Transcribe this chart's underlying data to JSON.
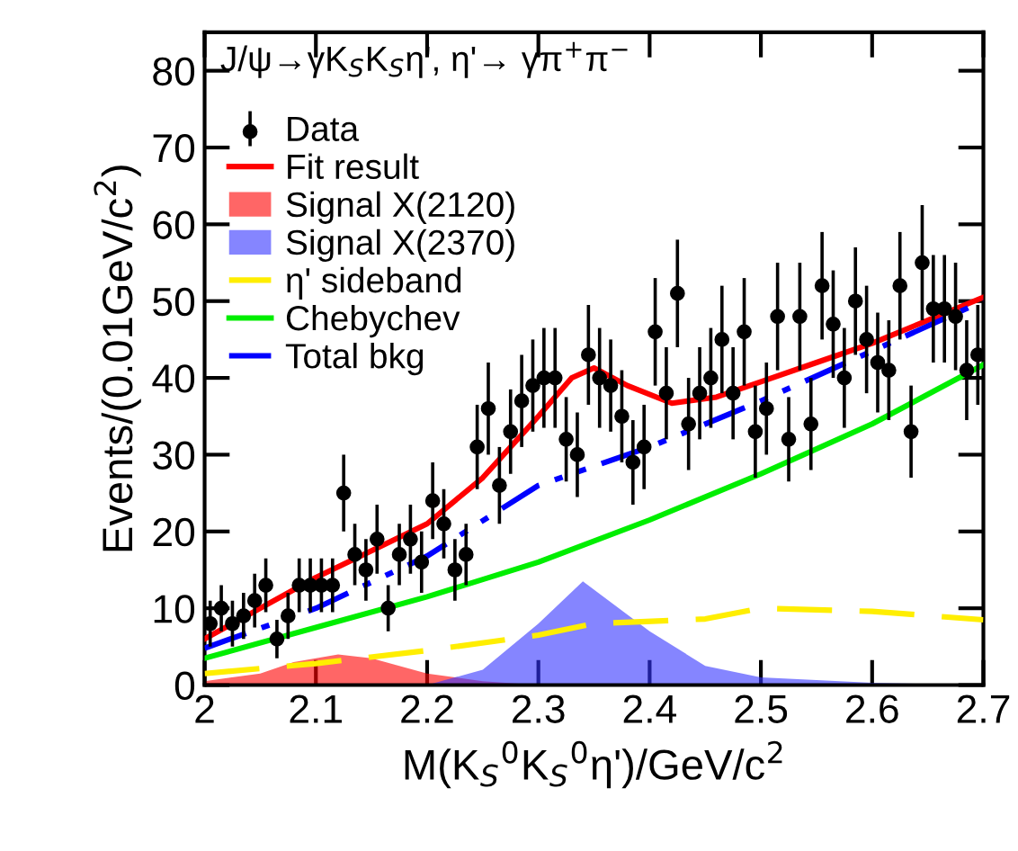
{
  "chart_data": {
    "type": "line",
    "xlabel": "M(K$_{S}$$^{0}$K$_{S}$$^{0}$η')/GeV/c$^{2}$",
    "ylabel": "Events/(0.01GeV/c$^{2}$)",
    "annotations": [
      "J/ψ→γK$_{S}$K$_{S}$η', η'→ γπ$^{+}$π$^{−}$"
    ],
    "xlim": [
      2,
      2.7
    ],
    "ylim": [
      0,
      85
    ],
    "xticks": [
      2,
      2.1,
      2.2,
      2.3,
      2.4,
      2.5,
      2.6,
      2.7
    ],
    "yticks": [
      0,
      10,
      20,
      30,
      40,
      50,
      60,
      70,
      80
    ],
    "grid": false,
    "legend": "top left",
    "series": [
      {
        "name": "Data",
        "type": "scatter",
        "marker": "circle",
        "color": "#000000",
        "x": [
          2.005,
          2.015,
          2.025,
          2.035,
          2.045,
          2.055,
          2.065,
          2.075,
          2.085,
          2.095,
          2.105,
          2.115,
          2.125,
          2.135,
          2.145,
          2.155,
          2.165,
          2.175,
          2.185,
          2.195,
          2.205,
          2.215,
          2.225,
          2.235,
          2.245,
          2.255,
          2.265,
          2.275,
          2.285,
          2.295,
          2.305,
          2.315,
          2.325,
          2.335,
          2.345,
          2.355,
          2.365,
          2.375,
          2.385,
          2.395,
          2.405,
          2.415,
          2.425,
          2.435,
          2.445,
          2.455,
          2.465,
          2.475,
          2.485,
          2.495,
          2.505,
          2.515,
          2.525,
          2.535,
          2.545,
          2.555,
          2.565,
          2.575,
          2.585,
          2.595,
          2.605,
          2.615,
          2.625,
          2.635,
          2.645,
          2.655,
          2.665,
          2.675,
          2.685,
          2.695
        ],
        "values": [
          8,
          10,
          8,
          9,
          11,
          13,
          6,
          9,
          13,
          13,
          13,
          13,
          25,
          17,
          15,
          19,
          10,
          17,
          19,
          16,
          24,
          21,
          15,
          17,
          31,
          36,
          26,
          33,
          37,
          39,
          40,
          40,
          32,
          30,
          43,
          40,
          39,
          35,
          29,
          31,
          46,
          38,
          51,
          34,
          38,
          40,
          45,
          38,
          46,
          33,
          36,
          48,
          32,
          48,
          34,
          52,
          47,
          40,
          50,
          45,
          42,
          41,
          52,
          33,
          55,
          49,
          49,
          48,
          41,
          43
        ],
        "errors": [
          3,
          3,
          3,
          3,
          3.5,
          3.5,
          2.5,
          3,
          3.5,
          3.5,
          3.5,
          3.5,
          5,
          4,
          4,
          4.5,
          3,
          4,
          4.5,
          4,
          5,
          4.5,
          4,
          4,
          5.5,
          6,
          5,
          5.5,
          6,
          6,
          6.5,
          6.5,
          5.5,
          5.5,
          6.5,
          6.5,
          6,
          6,
          5.5,
          5.5,
          7,
          6,
          7,
          6,
          6,
          6.5,
          7,
          6,
          7,
          6,
          6,
          7,
          5.5,
          7,
          6,
          7,
          7,
          6.5,
          7,
          7,
          6.5,
          6.5,
          7,
          6,
          7.5,
          7,
          7,
          7,
          6.5,
          6.5
        ]
      },
      {
        "name": "Fit result",
        "line_style": "solid",
        "color": "#ff0000",
        "x": [
          2,
          2.05,
          2.1,
          2.15,
          2.2,
          2.25,
          2.3,
          2.33,
          2.35,
          2.38,
          2.42,
          2.46,
          2.5,
          2.55,
          2.6,
          2.65,
          2.7
        ],
        "values": [
          6,
          10,
          14,
          17.5,
          21,
          27,
          35,
          40,
          41.3,
          39,
          36.7,
          37.5,
          39.5,
          42,
          44.5,
          47.5,
          50.5
        ]
      },
      {
        "name": "Signal X(2120)",
        "type": "area",
        "color": "#ff0000",
        "x": [
          2,
          2.05,
          2.08,
          2.12,
          2.15,
          2.2,
          2.25,
          2.3
        ],
        "values": [
          0.5,
          1.5,
          3,
          4,
          3.5,
          1.5,
          0.5,
          0
        ]
      },
      {
        "name": "Signal X(2370)",
        "type": "area",
        "color": "#3333ff",
        "x": [
          2.2,
          2.25,
          2.3,
          2.34,
          2.4,
          2.45,
          2.5,
          2.6,
          2.7
        ],
        "values": [
          0,
          2,
          8,
          13.5,
          7,
          2.5,
          1,
          0.3,
          0
        ]
      },
      {
        "name": "η' sideband",
        "line_style": "dashed",
        "color": "#ffee00",
        "x": [
          2,
          2.1,
          2.2,
          2.3,
          2.35,
          2.45,
          2.5,
          2.6,
          2.7
        ],
        "values": [
          1.5,
          2.8,
          4.5,
          6.5,
          8,
          8.6,
          10,
          9.6,
          8.5
        ]
      },
      {
        "name": "Chebychev",
        "line_style": "solid",
        "color": "#00ee00",
        "x": [
          2,
          2.1,
          2.2,
          2.3,
          2.4,
          2.5,
          2.6,
          2.7
        ],
        "values": [
          3.5,
          7.5,
          11.5,
          16,
          21.5,
          27.5,
          34,
          41.7
        ]
      },
      {
        "name": "Total bkg",
        "line_style": "dashdot",
        "color": "#0000ff",
        "x": [
          2,
          2.1,
          2.2,
          2.3,
          2.4,
          2.5,
          2.6,
          2.7
        ],
        "values": [
          4.8,
          10,
          16.8,
          26,
          31,
          37,
          43.5,
          50
        ]
      }
    ]
  }
}
